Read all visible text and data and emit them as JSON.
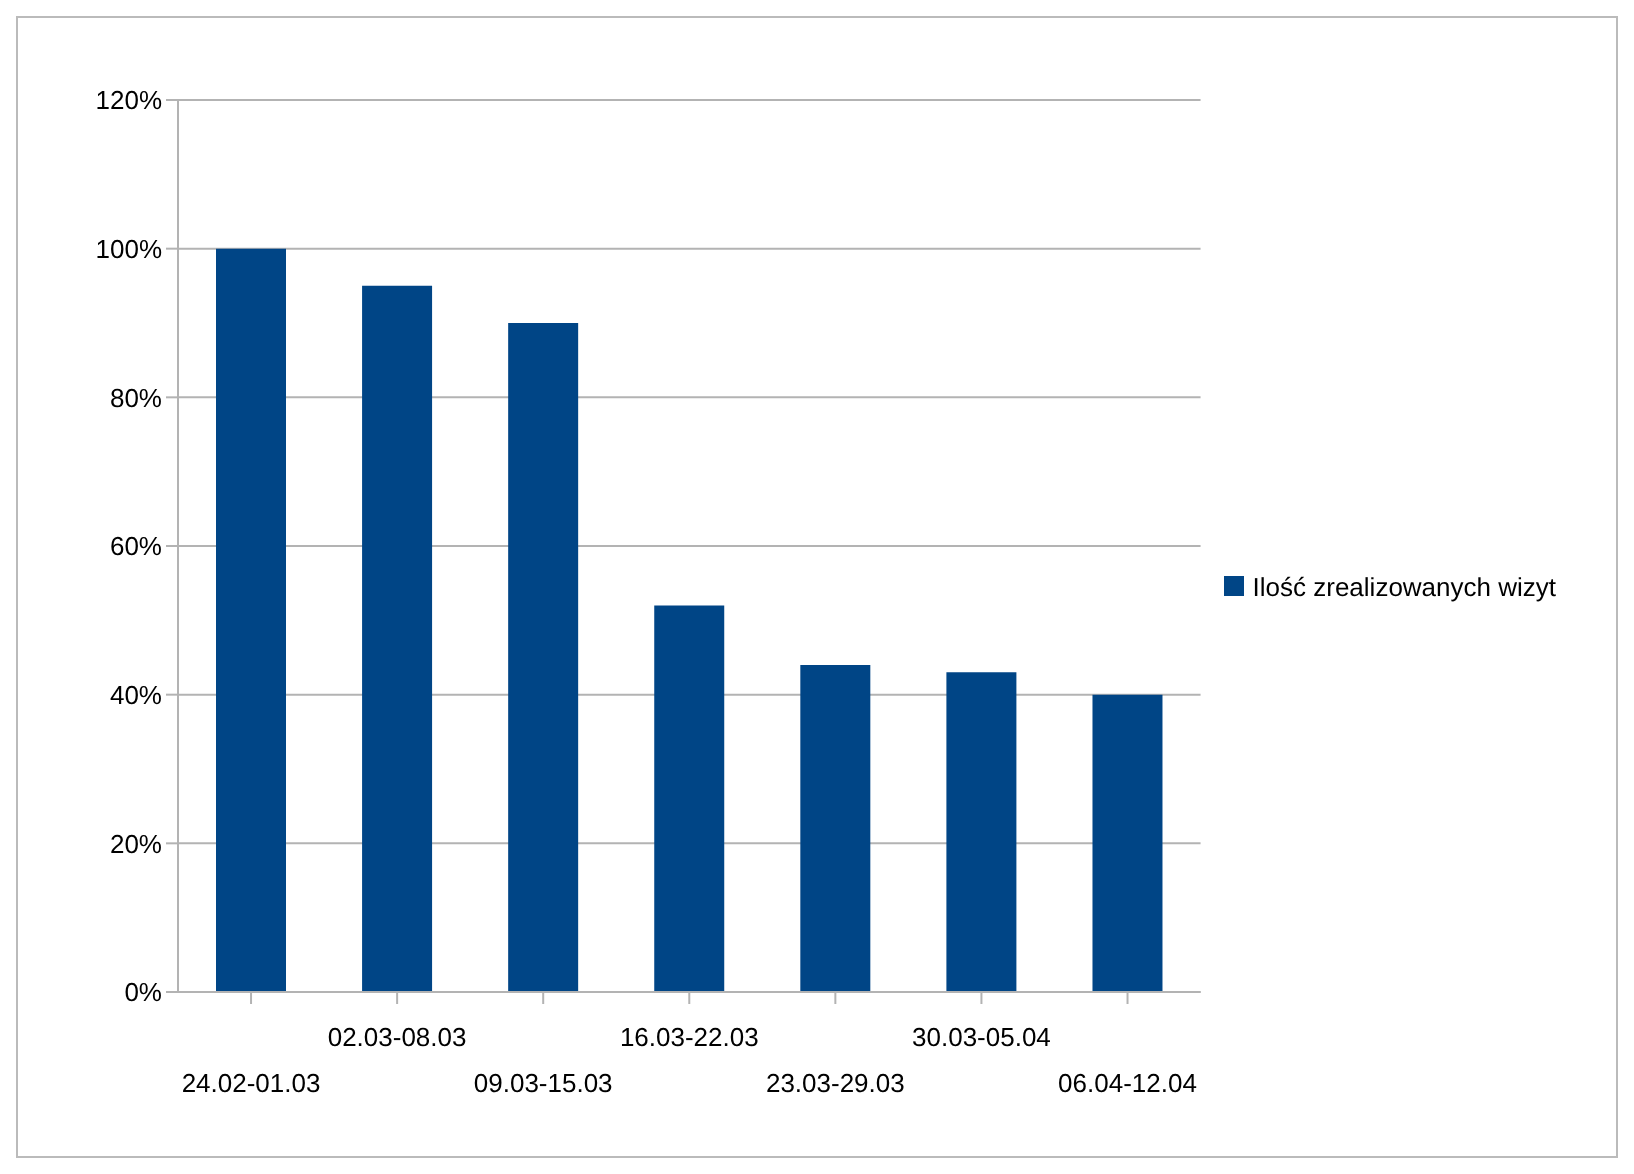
{
  "chart_data": {
    "type": "bar",
    "categories": [
      "24.02-01.03",
      "02.03-08.03",
      "09.03-15.03",
      "16.03-22.03",
      "23.03-29.03",
      "30.03-05.04",
      "06.04-12.04"
    ],
    "series": [
      {
        "name": "Ilość zrealizowanych wizyt",
        "color": "#004586",
        "values": [
          100,
          95,
          90,
          52,
          44,
          43,
          40
        ]
      }
    ],
    "ylim": [
      0,
      120
    ],
    "yticks": [
      {
        "value": 0,
        "label": "0%"
      },
      {
        "value": 20,
        "label": "20%"
      },
      {
        "value": 40,
        "label": "40%"
      },
      {
        "value": 60,
        "label": "60%"
      },
      {
        "value": 80,
        "label": "80%"
      },
      {
        "value": 100,
        "label": "100%"
      },
      {
        "value": 120,
        "label": "120%"
      }
    ],
    "grid": "y",
    "legend": "right"
  }
}
